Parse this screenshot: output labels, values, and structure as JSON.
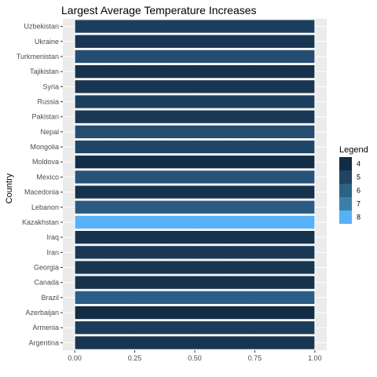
{
  "chart_data": {
    "type": "bar",
    "orientation": "horizontal",
    "title": "Largest Average Temperature Increases",
    "xlabel": "",
    "ylabel": "Country",
    "xlim": [
      0,
      1
    ],
    "x_ticks": [
      "0.00",
      "0.25",
      "0.50",
      "0.75",
      "1.00"
    ],
    "grid": true,
    "categories": [
      "Uzbekistan",
      "Ukraine",
      "Turkmenistan",
      "Tajikistan",
      "Syria",
      "Russia",
      "Pakistan",
      "Nepal",
      "Mongolia",
      "Moldova",
      "Mexico",
      "Macedonia",
      "Lebanon",
      "Kazakhstan",
      "Iraq",
      "Iran",
      "Georgia",
      "Canada",
      "Brazil",
      "Azerbaijan",
      "Armenia",
      "Argentina"
    ],
    "values": [
      1,
      1,
      1,
      1,
      1,
      1,
      1,
      1,
      1,
      1,
      1,
      1,
      1,
      1,
      1,
      1,
      1,
      1,
      1,
      1,
      1,
      1
    ],
    "fill_values": [
      4.6,
      4.3,
      5.0,
      4.2,
      4.3,
      4.6,
      4.4,
      5.0,
      4.8,
      4.1,
      5.2,
      4.2,
      5.4,
      8.0,
      4.2,
      4.4,
      4.3,
      4.2,
      5.5,
      4.0,
      4.5,
      4.3
    ],
    "legend": {
      "title": "Legend",
      "position": "right",
      "labels": [
        "4",
        "5",
        "6",
        "7",
        "8"
      ],
      "colors": [
        "#132b43",
        "#1f4563",
        "#2c6286",
        "#3b80aa",
        "#56b1f7"
      ]
    },
    "colors": {
      "low": "#132B43",
      "high": "#56B1F7",
      "panel_background": "#EBEBEB",
      "grid": "#FFFFFF"
    }
  }
}
